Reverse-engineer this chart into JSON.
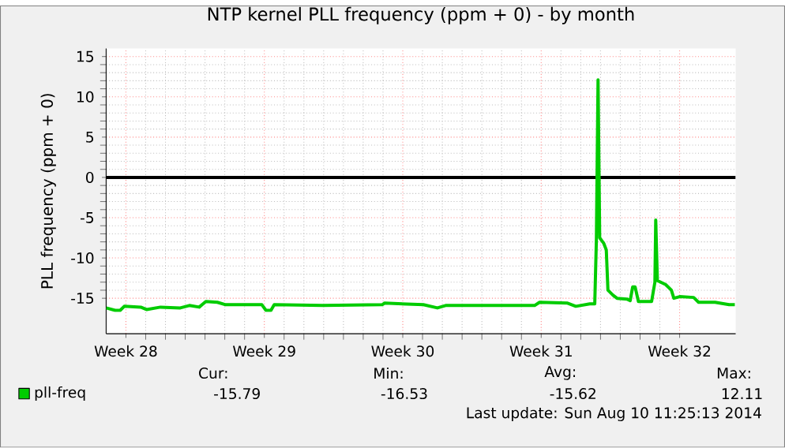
{
  "chart_data": {
    "type": "line",
    "title": "NTP kernel PLL frequency (ppm + 0) - by month",
    "ylabel": "PLL frequency (ppm + 0)",
    "x": [
      "2014-07-09T12:00",
      "2014-07-09T23:00",
      "2014-07-10T05:00",
      "2014-07-10T10:00",
      "2014-07-11T06:00",
      "2014-07-11T13:00",
      "2014-07-12T06:00",
      "2014-07-13T06:00",
      "2014-07-13T17:00",
      "2014-07-14T05:00",
      "2014-07-14T13:00",
      "2014-07-15T03:00",
      "2014-07-15T13:00",
      "2014-07-17T09:00",
      "2014-07-17T14:00",
      "2014-07-17T20:00",
      "2014-07-18T00:00",
      "2014-07-20T11:00",
      "2014-07-23T11:00",
      "2014-07-23T14:00",
      "2014-07-25T13:00",
      "2014-07-26T06:00",
      "2014-07-26T16:00",
      "2014-07-28T17:00",
      "2014-07-31T04:00",
      "2014-07-31T10:00",
      "2014-08-01T20:00",
      "2014-08-02T06:00",
      "2014-08-02T23:00",
      "2014-08-03T05:00",
      "2014-08-03T07:00",
      "2014-08-03T09:00",
      "2014-08-03T11:00",
      "2014-08-03T16:00",
      "2014-08-03T19:00",
      "2014-08-03T21:00",
      "2014-08-04T03:00",
      "2014-08-04T08:00",
      "2014-08-04T20:00",
      "2014-08-05T00:00",
      "2014-08-05T03:00",
      "2014-08-05T06:00",
      "2014-08-05T10:00",
      "2014-08-06T02:00",
      "2014-08-06T06:00",
      "2014-08-06T07:00",
      "2014-08-06T09:00",
      "2014-08-06T19:00",
      "2014-08-07T02:00",
      "2014-08-07T05:00",
      "2014-08-07T12:00",
      "2014-08-08T05:00",
      "2014-08-08T11:00",
      "2014-08-09T07:00",
      "2014-08-10T00:00",
      "2014-08-10T07:00"
    ],
    "series": [
      {
        "name": "pll-freq",
        "color": "#00cc00",
        "values": [
          -16.2,
          -16.5,
          -16.5,
          -16.0,
          -16.1,
          -16.4,
          -16.1,
          -16.2,
          -15.9,
          -16.1,
          -15.4,
          -15.5,
          -15.8,
          -15.8,
          -16.5,
          -16.5,
          -15.8,
          -15.9,
          -15.8,
          -15.6,
          -15.8,
          -16.2,
          -15.9,
          -15.9,
          -15.9,
          -15.5,
          -15.6,
          -16.0,
          -15.7,
          -15.7,
          -7.6,
          12.1,
          -7.5,
          -8.2,
          -9.0,
          -14.0,
          -14.6,
          -15.0,
          -15.1,
          -15.3,
          -13.6,
          -13.6,
          -15.4,
          -15.4,
          -13.0,
          -5.3,
          -12.8,
          -13.3,
          -14.0,
          -15.0,
          -14.8,
          -14.9,
          -15.5,
          -15.5,
          -15.8,
          -15.8
        ]
      }
    ],
    "xlim": [
      "2014-07-09T12:00",
      "2014-08-10T08:00"
    ],
    "xticks": [
      {
        "value": "2014-07-10T12:00",
        "label": "Week 28"
      },
      {
        "value": "2014-07-17T12:00",
        "label": "Week 29"
      },
      {
        "value": "2014-07-24T12:00",
        "label": "Week 30"
      },
      {
        "value": "2014-07-31T12:00",
        "label": "Week 31"
      },
      {
        "value": "2014-08-07T12:00",
        "label": "Week 32"
      }
    ],
    "ylim": [
      -19.4,
      16
    ],
    "yticks": [
      -15,
      -10,
      -5,
      0,
      5,
      10,
      15
    ],
    "ref_lines": [
      {
        "axis": "y",
        "value": 0,
        "color": "#000000"
      }
    ],
    "grid": true,
    "legend": "bottom left",
    "annotations": [
      "Cur:",
      "-15.79",
      "Min:",
      "-16.53",
      "Avg:",
      "-15.62",
      "Max:",
      "12.11",
      "Last update: Sun Aug 10 11:25:13 2014"
    ]
  }
}
